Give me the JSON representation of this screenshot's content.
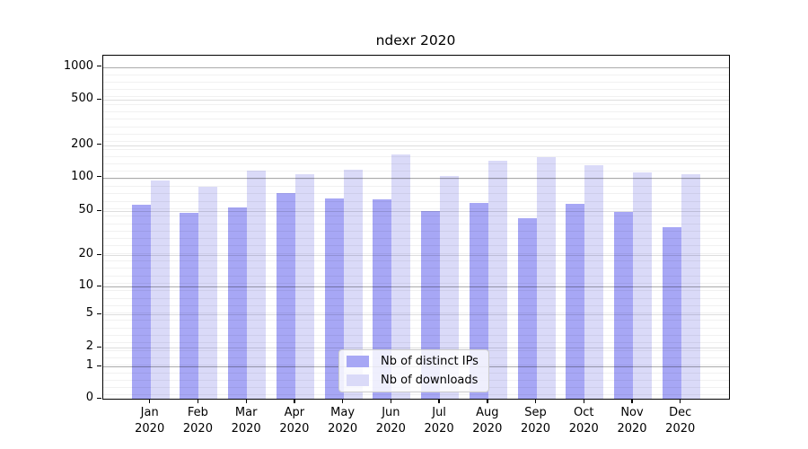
{
  "chart_data": {
    "type": "bar",
    "title": "ndexr 2020",
    "categories": [
      "Jan",
      "Feb",
      "Mar",
      "Apr",
      "May",
      "Jun",
      "Jul",
      "Aug",
      "Sep",
      "Oct",
      "Nov",
      "Dec"
    ],
    "category_year": "2020",
    "series": [
      {
        "name": "Nb of distinct IPs",
        "color": "#a7a7f5",
        "values": [
          57,
          48,
          54,
          72,
          65,
          64,
          50,
          59,
          43,
          58,
          49,
          36
        ]
      },
      {
        "name": "Nb of downloads",
        "color": "#dadaf8",
        "values": [
          93,
          82,
          115,
          107,
          118,
          165,
          103,
          143,
          155,
          129,
          111,
          107
        ]
      }
    ],
    "yscale": "symlog",
    "yticks": [
      0,
      1,
      2,
      5,
      10,
      20,
      50,
      100,
      200,
      500,
      1000
    ],
    "ylim": [
      0,
      1400
    ],
    "xlabel": "",
    "ylabel": "",
    "grid": true,
    "legend_position": "lower center"
  }
}
